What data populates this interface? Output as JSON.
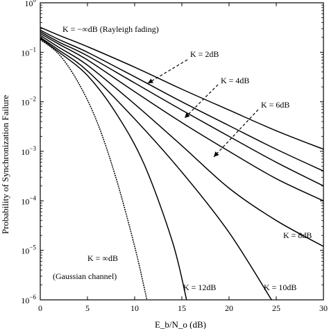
{
  "chart_data": {
    "type": "line",
    "xlabel": "E_b/N_o (dB)",
    "ylabel": "Probability of Synchronization Failure",
    "xlim": [
      0,
      30
    ],
    "ylim": [
      1e-06,
      1
    ],
    "yscale": "log",
    "x_ticks": [
      0,
      5,
      10,
      15,
      20,
      25,
      30
    ],
    "x_tick_labels": [
      "0",
      "5",
      "10",
      "15",
      "20",
      "25",
      "30"
    ],
    "y_ticks": [
      1e-06,
      1e-05,
      0.0001,
      0.001,
      0.01,
      0.1,
      1
    ],
    "y_tick_labels": [
      {
        "base": "10",
        "exp": "−6"
      },
      {
        "base": "10",
        "exp": "−5"
      },
      {
        "base": "10",
        "exp": "−4"
      },
      {
        "base": "10",
        "exp": "−3"
      },
      {
        "base": "10",
        "exp": "−2"
      },
      {
        "base": "10",
        "exp": "−1"
      },
      {
        "base": "10",
        "exp": "0"
      }
    ],
    "grid": false,
    "series": [
      {
        "name": "K = −∞dB",
        "x": [
          0,
          2,
          5,
          10,
          15,
          20,
          25,
          30
        ],
        "y": [
          0.32,
          0.22,
          0.13,
          0.05,
          0.018,
          0.0068,
          0.0026,
          0.0011
        ]
      },
      {
        "name": "K = 2dB",
        "x": [
          0,
          2,
          5,
          10,
          15,
          20,
          25,
          30
        ],
        "y": [
          0.28,
          0.18,
          0.1,
          0.032,
          0.01,
          0.0033,
          0.0011,
          0.0004
        ]
      },
      {
        "name": "K = 4dB",
        "x": [
          0,
          2,
          5,
          10,
          15,
          20,
          25,
          30
        ],
        "y": [
          0.26,
          0.16,
          0.085,
          0.024,
          0.0068,
          0.002,
          0.0006,
          0.0002
        ]
      },
      {
        "name": "K = 6dB",
        "x": [
          0,
          2,
          5,
          10,
          15,
          20,
          25,
          30
        ],
        "y": [
          0.24,
          0.145,
          0.07,
          0.016,
          0.0038,
          0.001,
          0.00028,
          0.0001
        ]
      },
      {
        "name": "K = 8dB",
        "x": [
          0,
          2,
          5,
          10,
          15,
          20,
          25,
          30
        ],
        "y": [
          0.22,
          0.125,
          0.055,
          0.009,
          0.0013,
          0.00018,
          4e-05,
          1.2e-05
        ]
      },
      {
        "name": "K = 10dB",
        "x": [
          0,
          2,
          5,
          10,
          15,
          20,
          24.5
        ],
        "y": [
          0.2,
          0.11,
          0.042,
          0.0045,
          0.00038,
          2.3e-05,
          1e-06
        ]
      },
      {
        "name": "K = 12dB",
        "x": [
          0,
          2,
          5,
          8,
          11,
          14,
          15.5
        ],
        "y": [
          0.19,
          0.1,
          0.034,
          0.006,
          0.00055,
          1.5e-05,
          1e-06
        ]
      },
      {
        "name": "K = ∞dB",
        "x": [
          0,
          2,
          4,
          6,
          8,
          10,
          11.3
        ],
        "y": [
          0.18,
          0.09,
          0.025,
          0.004,
          0.0003,
          1.2e-05,
          1e-06
        ]
      }
    ],
    "annotations": [
      {
        "id": "k-rayleigh",
        "text": "K = −∞dB   (Rayleigh fading)"
      },
      {
        "id": "k2",
        "text": "K = 2dB"
      },
      {
        "id": "k4",
        "text": "K = 4dB"
      },
      {
        "id": "k6",
        "text": "K = 6dB"
      },
      {
        "id": "k8",
        "text": "K = 8dB"
      },
      {
        "id": "k10",
        "text": "K = 10dB"
      },
      {
        "id": "k12",
        "text": "K = 12dB"
      },
      {
        "id": "kinf",
        "text": "K = ∞dB"
      },
      {
        "id": "gaussian",
        "text": "(Gaussian channel)"
      }
    ]
  }
}
